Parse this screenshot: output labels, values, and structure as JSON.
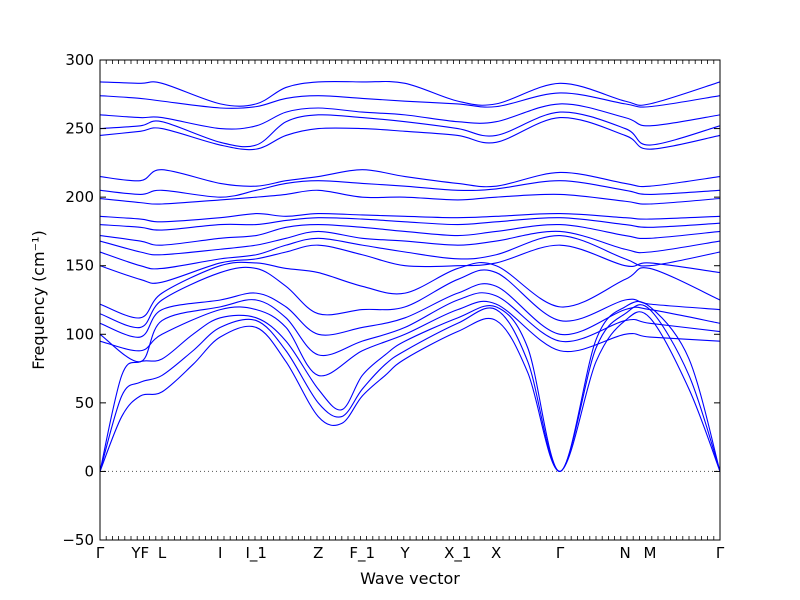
{
  "chart_data": {
    "type": "line",
    "xlabel": "Wave vector",
    "ylabel": "Frequency (cm⁻¹)",
    "ylim": [
      -50,
      300
    ],
    "yticks": [
      -50,
      0,
      50,
      100,
      150,
      200,
      250,
      300
    ],
    "grid": false,
    "legend": "none",
    "zero_line": {
      "y": 0,
      "style": "dotted",
      "color": "#555555"
    },
    "line_color": "#0000ff",
    "xlim": [
      0,
      1
    ],
    "path_points": [
      {
        "label": "Γ",
        "x": 0.0
      },
      {
        "label": "YF",
        "x": 0.065
      },
      {
        "label": "L",
        "x": 0.1
      },
      {
        "label": "I",
        "x": 0.194
      },
      {
        "label": "I_1",
        "x": 0.252
      },
      {
        "label": "Z",
        "x": 0.352
      },
      {
        "label": "F_1",
        "x": 0.423
      },
      {
        "label": "Y",
        "x": 0.492
      },
      {
        "label": "X_1",
        "x": 0.577
      },
      {
        "label": "X",
        "x": 0.639
      },
      {
        "label": "Γ",
        "x": 0.742
      },
      {
        "label": "N",
        "x": 0.847
      },
      {
        "label": "M",
        "x": 0.887
      },
      {
        "label": "Γ",
        "x": 1.0
      }
    ],
    "series": [
      {
        "x": [
          0,
          0.035,
          0.065,
          0.1,
          0.15,
          0.194,
          0.252,
          0.3,
          0.352,
          0.39,
          0.423,
          0.46,
          0.492,
          0.577,
          0.639,
          0.69,
          0.742,
          0.8,
          0.847,
          0.887,
          0.95,
          1.0
        ],
        "values": [
          0,
          40,
          55,
          58,
          78,
          98,
          105,
          80,
          40,
          35,
          55,
          70,
          82,
          102,
          110,
          72,
          0,
          80,
          110,
          112,
          60,
          0
        ]
      },
      {
        "x": [
          0,
          0.035,
          0.065,
          0.1,
          0.15,
          0.194,
          0.252,
          0.3,
          0.352,
          0.39,
          0.423,
          0.46,
          0.492,
          0.577,
          0.639,
          0.69,
          0.742,
          0.8,
          0.847,
          0.887,
          0.95,
          1.0
        ],
        "values": [
          0,
          55,
          65,
          70,
          88,
          105,
          110,
          88,
          50,
          40,
          60,
          78,
          88,
          108,
          118,
          80,
          0,
          90,
          115,
          118,
          70,
          0
        ]
      },
      {
        "x": [
          0,
          0.035,
          0.065,
          0.1,
          0.15,
          0.194,
          0.252,
          0.3,
          0.352,
          0.39,
          0.423,
          0.46,
          0.492,
          0.577,
          0.639,
          0.69,
          0.742,
          0.8,
          0.847,
          0.887,
          0.95,
          1.0
        ],
        "values": [
          0,
          70,
          80,
          82,
          100,
          112,
          112,
          95,
          60,
          45,
          70,
          85,
          95,
          112,
          120,
          90,
          0,
          96,
          120,
          120,
          82,
          0
        ]
      },
      {
        "x": [
          0,
          0.065,
          0.1,
          0.194,
          0.252,
          0.3,
          0.352,
          0.423,
          0.492,
          0.577,
          0.639,
          0.742,
          0.847,
          0.887,
          1.0
        ],
        "values": [
          95,
          88,
          100,
          118,
          118,
          105,
          70,
          88,
          100,
          118,
          122,
          88,
          100,
          98,
          95
        ]
      },
      {
        "x": [
          0,
          0.065,
          0.1,
          0.194,
          0.252,
          0.3,
          0.352,
          0.423,
          0.492,
          0.577,
          0.639,
          0.742,
          0.847,
          0.887,
          1.0
        ],
        "values": [
          100,
          80,
          110,
          120,
          125,
          112,
          85,
          95,
          105,
          125,
          128,
          95,
          110,
          108,
          102
        ]
      },
      {
        "x": [
          0,
          0.065,
          0.1,
          0.194,
          0.252,
          0.3,
          0.352,
          0.423,
          0.492,
          0.577,
          0.639,
          0.742,
          0.847,
          0.887,
          1.0
        ],
        "values": [
          108,
          98,
          118,
          125,
          130,
          120,
          100,
          105,
          112,
          130,
          135,
          100,
          118,
          118,
          108
        ]
      },
      {
        "x": [
          0,
          0.065,
          0.1,
          0.194,
          0.252,
          0.3,
          0.352,
          0.423,
          0.492,
          0.577,
          0.639,
          0.742,
          0.847,
          0.887,
          1.0
        ],
        "values": [
          115,
          105,
          125,
          145,
          148,
          135,
          115,
          118,
          120,
          140,
          145,
          110,
          125,
          122,
          118
        ]
      },
      {
        "x": [
          0,
          0.065,
          0.1,
          0.194,
          0.252,
          0.3,
          0.352,
          0.423,
          0.492,
          0.577,
          0.639,
          0.742,
          0.847,
          0.887,
          1.0
        ],
        "values": [
          122,
          112,
          130,
          150,
          152,
          148,
          145,
          135,
          130,
          148,
          150,
          120,
          140,
          148,
          125
        ]
      },
      {
        "x": [
          0,
          0.065,
          0.1,
          0.194,
          0.252,
          0.3,
          0.352,
          0.423,
          0.492,
          0.577,
          0.639,
          0.742,
          0.847,
          0.887,
          1.0
        ],
        "values": [
          150,
          140,
          138,
          152,
          155,
          160,
          165,
          158,
          150,
          150,
          152,
          165,
          150,
          152,
          145
        ]
      },
      {
        "x": [
          0,
          0.065,
          0.1,
          0.194,
          0.252,
          0.3,
          0.352,
          0.423,
          0.492,
          0.577,
          0.639,
          0.742,
          0.847,
          0.887,
          1.0
        ],
        "values": [
          160,
          150,
          148,
          155,
          158,
          165,
          170,
          165,
          160,
          155,
          158,
          172,
          155,
          150,
          160
        ]
      },
      {
        "x": [
          0,
          0.065,
          0.1,
          0.194,
          0.252,
          0.3,
          0.352,
          0.423,
          0.492,
          0.577,
          0.639,
          0.742,
          0.847,
          0.887,
          1.0
        ],
        "values": [
          168,
          160,
          158,
          162,
          165,
          170,
          175,
          170,
          168,
          165,
          168,
          175,
          162,
          160,
          168
        ]
      },
      {
        "x": [
          0,
          0.065,
          0.1,
          0.194,
          0.252,
          0.3,
          0.352,
          0.423,
          0.492,
          0.577,
          0.639,
          0.742,
          0.847,
          0.887,
          1.0
        ],
        "values": [
          172,
          168,
          165,
          170,
          172,
          178,
          180,
          178,
          175,
          172,
          175,
          180,
          172,
          170,
          175
        ]
      },
      {
        "x": [
          0,
          0.065,
          0.1,
          0.194,
          0.252,
          0.3,
          0.352,
          0.423,
          0.492,
          0.577,
          0.639,
          0.742,
          0.847,
          0.887,
          1.0
        ],
        "values": [
          180,
          178,
          176,
          180,
          180,
          183,
          185,
          184,
          182,
          180,
          182,
          185,
          180,
          178,
          181
        ]
      },
      {
        "x": [
          0,
          0.065,
          0.1,
          0.194,
          0.252,
          0.3,
          0.352,
          0.423,
          0.492,
          0.577,
          0.639,
          0.742,
          0.847,
          0.887,
          1.0
        ],
        "values": [
          186,
          184,
          182,
          185,
          188,
          186,
          188,
          187,
          186,
          185,
          186,
          188,
          185,
          184,
          186
        ]
      },
      {
        "x": [
          0,
          0.065,
          0.1,
          0.194,
          0.252,
          0.3,
          0.352,
          0.423,
          0.492,
          0.577,
          0.639,
          0.742,
          0.847,
          0.887,
          1.0
        ],
        "values": [
          199,
          196,
          195,
          198,
          200,
          202,
          205,
          200,
          200,
          198,
          200,
          202,
          197,
          195,
          199
        ]
      },
      {
        "x": [
          0,
          0.065,
          0.1,
          0.194,
          0.252,
          0.3,
          0.352,
          0.423,
          0.492,
          0.577,
          0.639,
          0.742,
          0.847,
          0.887,
          1.0
        ],
        "values": [
          205,
          202,
          205,
          200,
          205,
          210,
          212,
          210,
          208,
          205,
          206,
          212,
          205,
          202,
          205
        ]
      },
      {
        "x": [
          0,
          0.065,
          0.1,
          0.194,
          0.252,
          0.3,
          0.352,
          0.423,
          0.492,
          0.577,
          0.639,
          0.742,
          0.847,
          0.887,
          1.0
        ],
        "values": [
          215,
          212,
          220,
          210,
          208,
          212,
          215,
          220,
          215,
          210,
          208,
          218,
          210,
          208,
          215
        ]
      },
      {
        "x": [
          0,
          0.065,
          0.1,
          0.194,
          0.252,
          0.3,
          0.352,
          0.423,
          0.492,
          0.577,
          0.639,
          0.742,
          0.847,
          0.887,
          1.0
        ],
        "values": [
          245,
          248,
          250,
          238,
          235,
          245,
          250,
          250,
          248,
          245,
          240,
          258,
          245,
          235,
          245
        ]
      },
      {
        "x": [
          0,
          0.065,
          0.1,
          0.194,
          0.252,
          0.3,
          0.352,
          0.423,
          0.492,
          0.577,
          0.639,
          0.742,
          0.847,
          0.887,
          1.0
        ],
        "values": [
          250,
          252,
          255,
          240,
          238,
          255,
          260,
          258,
          255,
          250,
          245,
          262,
          250,
          238,
          252
        ]
      },
      {
        "x": [
          0,
          0.065,
          0.1,
          0.194,
          0.252,
          0.3,
          0.352,
          0.423,
          0.492,
          0.577,
          0.639,
          0.742,
          0.847,
          0.887,
          1.0
        ],
        "values": [
          260,
          258,
          258,
          250,
          252,
          262,
          265,
          262,
          260,
          255,
          255,
          268,
          258,
          252,
          260
        ]
      },
      {
        "x": [
          0,
          0.065,
          0.1,
          0.194,
          0.252,
          0.3,
          0.352,
          0.423,
          0.492,
          0.577,
          0.639,
          0.742,
          0.847,
          0.887,
          1.0
        ],
        "values": [
          274,
          272,
          270,
          265,
          266,
          272,
          274,
          272,
          270,
          268,
          266,
          276,
          268,
          266,
          274
        ]
      },
      {
        "x": [
          0,
          0.065,
          0.1,
          0.194,
          0.252,
          0.3,
          0.352,
          0.423,
          0.492,
          0.577,
          0.639,
          0.742,
          0.847,
          0.887,
          1.0
        ],
        "values": [
          284,
          283,
          283,
          268,
          268,
          280,
          284,
          284,
          283,
          270,
          268,
          283,
          270,
          268,
          284
        ]
      }
    ]
  }
}
